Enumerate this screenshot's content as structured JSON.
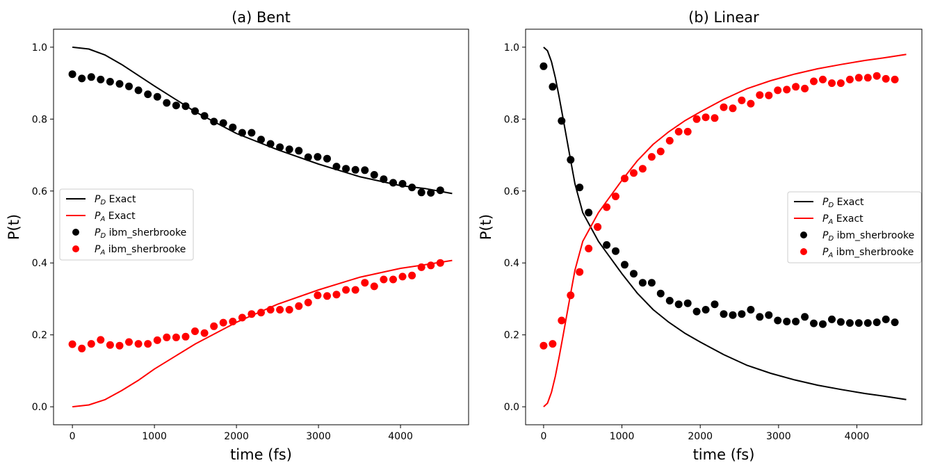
{
  "colors": {
    "P_D": "#000000",
    "P_A": "#ff0000"
  },
  "chart_data": [
    {
      "type": "line+scatter",
      "title": "(a) Bent",
      "xlabel": "time (fs)",
      "ylabel": "P(t)",
      "xlim": [
        -230,
        4830
      ],
      "ylim": [
        -0.05,
        1.05
      ],
      "xticks": [
        0,
        1000,
        2000,
        3000,
        4000
      ],
      "yticks": [
        0.0,
        0.2,
        0.4,
        0.6,
        0.8,
        1.0
      ],
      "xtick_labels": [
        "0",
        "1000",
        "2000",
        "3000",
        "4000"
      ],
      "ytick_labels": [
        "0.0",
        "0.2",
        "0.4",
        "0.6",
        "0.8",
        "1.0"
      ],
      "grid": false,
      "legend": {
        "position": "center-left",
        "entries": [
          {
            "label_main": "P",
            "label_sub": "D",
            "label_rest": " Exact",
            "marker": "line",
            "series": "P_D"
          },
          {
            "label_main": "P",
            "label_sub": "A",
            "label_rest": " Exact",
            "marker": "line",
            "series": "P_A"
          },
          {
            "label_main": "P",
            "label_sub": "D",
            "label_rest": " ibm_sherbrooke",
            "marker": "dot",
            "series": "P_D"
          },
          {
            "label_main": "P",
            "label_sub": "A",
            "label_rest": " ibm_sherbrooke",
            "marker": "dot",
            "series": "P_A"
          }
        ]
      },
      "lines": [
        {
          "name": "P_D Exact",
          "color": "#000000",
          "x": [
            0,
            200,
            400,
            600,
            800,
            1000,
            1500,
            2000,
            2500,
            3000,
            3500,
            4000,
            4300,
            4630
          ],
          "y": [
            1.0,
            0.995,
            0.978,
            0.952,
            0.922,
            0.892,
            0.82,
            0.76,
            0.715,
            0.675,
            0.64,
            0.615,
            0.607,
            0.593
          ]
        },
        {
          "name": "P_A Exact",
          "color": "#ff0000",
          "x": [
            0,
            200,
            400,
            600,
            800,
            1000,
            1500,
            2000,
            2500,
            3000,
            3500,
            4000,
            4300,
            4630
          ],
          "y": [
            0.0,
            0.005,
            0.02,
            0.045,
            0.073,
            0.105,
            0.175,
            0.235,
            0.285,
            0.325,
            0.36,
            0.385,
            0.395,
            0.407
          ]
        }
      ],
      "scatter": [
        {
          "name": "P_D ibm_sherbrooke",
          "color": "#000000",
          "x": [
            0,
            115,
            230,
            345,
            460,
            575,
            690,
            805,
            920,
            1035,
            1150,
            1265,
            1380,
            1495,
            1610,
            1725,
            1840,
            1955,
            2070,
            2185,
            2300,
            2415,
            2530,
            2645,
            2760,
            2875,
            2990,
            3105,
            3220,
            3335,
            3450,
            3565,
            3680,
            3795,
            3910,
            4025,
            4140,
            4255,
            4370,
            4485
          ],
          "y": [
            0.925,
            0.913,
            0.917,
            0.91,
            0.904,
            0.898,
            0.891,
            0.88,
            0.869,
            0.862,
            0.845,
            0.838,
            0.836,
            0.822,
            0.809,
            0.793,
            0.789,
            0.777,
            0.762,
            0.762,
            0.743,
            0.731,
            0.722,
            0.716,
            0.712,
            0.694,
            0.695,
            0.69,
            0.668,
            0.662,
            0.659,
            0.658,
            0.645,
            0.633,
            0.623,
            0.62,
            0.61,
            0.596,
            0.595,
            0.602
          ]
        },
        {
          "name": "P_A ibm_sherbrooke",
          "color": "#ff0000",
          "x": [
            0,
            115,
            230,
            345,
            460,
            575,
            690,
            805,
            920,
            1035,
            1150,
            1265,
            1380,
            1495,
            1610,
            1725,
            1840,
            1955,
            2070,
            2185,
            2300,
            2415,
            2530,
            2645,
            2760,
            2875,
            2990,
            3105,
            3220,
            3335,
            3450,
            3565,
            3680,
            3795,
            3910,
            4025,
            4140,
            4255,
            4370,
            4485
          ],
          "y": [
            0.174,
            0.162,
            0.175,
            0.186,
            0.172,
            0.17,
            0.18,
            0.175,
            0.175,
            0.185,
            0.193,
            0.193,
            0.195,
            0.21,
            0.205,
            0.224,
            0.234,
            0.237,
            0.248,
            0.258,
            0.262,
            0.27,
            0.27,
            0.27,
            0.28,
            0.29,
            0.31,
            0.308,
            0.312,
            0.325,
            0.325,
            0.345,
            0.335,
            0.354,
            0.354,
            0.362,
            0.365,
            0.388,
            0.393,
            0.4
          ]
        }
      ]
    },
    {
      "type": "line+scatter",
      "title": "(b) Linear",
      "xlabel": "time (fs)",
      "ylabel": "P(t)",
      "xlim": [
        -230,
        4830
      ],
      "ylim": [
        -0.05,
        1.05
      ],
      "xticks": [
        0,
        1000,
        2000,
        3000,
        4000
      ],
      "yticks": [
        0.0,
        0.2,
        0.4,
        0.6,
        0.8,
        1.0
      ],
      "xtick_labels": [
        "0",
        "1000",
        "2000",
        "3000",
        "4000"
      ],
      "ytick_labels": [
        "0.0",
        "0.2",
        "0.4",
        "0.6",
        "0.8",
        "1.0"
      ],
      "grid": false,
      "legend": {
        "position": "center-right",
        "entries": [
          {
            "label_main": "P",
            "label_sub": "D",
            "label_rest": " Exact",
            "marker": "line",
            "series": "P_D"
          },
          {
            "label_main": "P",
            "label_sub": "A",
            "label_rest": " Exact",
            "marker": "line",
            "series": "P_A"
          },
          {
            "label_main": "P",
            "label_sub": "D",
            "label_rest": " ibm_sherbrooke",
            "marker": "dot",
            "series": "P_D"
          },
          {
            "label_main": "P",
            "label_sub": "A",
            "label_rest": " ibm_sherbrooke",
            "marker": "dot",
            "series": "P_A"
          }
        ]
      },
      "lines": [
        {
          "name": "P_D Exact",
          "color": "#000000",
          "x": [
            0,
            50,
            100,
            150,
            200,
            250,
            300,
            350,
            400,
            450,
            500,
            600,
            700,
            800,
            900,
            1000,
            1200,
            1400,
            1600,
            1800,
            2000,
            2300,
            2600,
            2900,
            3200,
            3500,
            3800,
            4100,
            4400,
            4630
          ],
          "y": [
            1.0,
            0.99,
            0.96,
            0.915,
            0.86,
            0.8,
            0.74,
            0.68,
            0.62,
            0.58,
            0.54,
            0.5,
            0.46,
            0.43,
            0.4,
            0.37,
            0.315,
            0.27,
            0.235,
            0.205,
            0.18,
            0.145,
            0.115,
            0.093,
            0.075,
            0.06,
            0.048,
            0.037,
            0.028,
            0.02
          ]
        },
        {
          "name": "P_A Exact",
          "color": "#ff0000",
          "x": [
            0,
            50,
            100,
            150,
            200,
            250,
            300,
            350,
            400,
            450,
            500,
            600,
            700,
            800,
            900,
            1000,
            1200,
            1400,
            1600,
            1800,
            2000,
            2300,
            2600,
            2900,
            3200,
            3500,
            3800,
            4100,
            4400,
            4630
          ],
          "y": [
            0.0,
            0.01,
            0.04,
            0.085,
            0.14,
            0.2,
            0.26,
            0.32,
            0.38,
            0.42,
            0.46,
            0.5,
            0.54,
            0.57,
            0.6,
            0.63,
            0.685,
            0.73,
            0.765,
            0.795,
            0.82,
            0.855,
            0.885,
            0.907,
            0.925,
            0.94,
            0.952,
            0.963,
            0.972,
            0.98
          ]
        }
      ],
      "scatter": [
        {
          "name": "P_D ibm_sherbrooke",
          "color": "#000000",
          "x": [
            0,
            115,
            230,
            345,
            460,
            575,
            690,
            805,
            920,
            1035,
            1150,
            1265,
            1380,
            1495,
            1610,
            1725,
            1840,
            1955,
            2070,
            2185,
            2300,
            2415,
            2530,
            2645,
            2760,
            2875,
            2990,
            3105,
            3220,
            3335,
            3450,
            3565,
            3680,
            3795,
            3910,
            4025,
            4140,
            4255,
            4370,
            4485
          ],
          "y": [
            0.947,
            0.89,
            0.795,
            0.687,
            0.61,
            0.54,
            0.5,
            0.45,
            0.433,
            0.395,
            0.37,
            0.345,
            0.345,
            0.315,
            0.295,
            0.285,
            0.288,
            0.265,
            0.27,
            0.285,
            0.258,
            0.255,
            0.258,
            0.27,
            0.25,
            0.255,
            0.24,
            0.237,
            0.237,
            0.25,
            0.232,
            0.23,
            0.243,
            0.236,
            0.233,
            0.233,
            0.233,
            0.235,
            0.243,
            0.235
          ]
        },
        {
          "name": "P_A ibm_sherbrooke",
          "color": "#ff0000",
          "x": [
            0,
            115,
            230,
            345,
            460,
            575,
            690,
            805,
            920,
            1035,
            1150,
            1265,
            1380,
            1495,
            1610,
            1725,
            1840,
            1955,
            2070,
            2185,
            2300,
            2415,
            2530,
            2645,
            2760,
            2875,
            2990,
            3105,
            3220,
            3335,
            3450,
            3565,
            3680,
            3795,
            3910,
            4025,
            4140,
            4255,
            4370,
            4485
          ],
          "y": [
            0.17,
            0.175,
            0.24,
            0.31,
            0.375,
            0.44,
            0.5,
            0.555,
            0.585,
            0.635,
            0.65,
            0.662,
            0.695,
            0.71,
            0.74,
            0.765,
            0.765,
            0.8,
            0.805,
            0.803,
            0.833,
            0.83,
            0.852,
            0.843,
            0.867,
            0.866,
            0.88,
            0.882,
            0.89,
            0.885,
            0.905,
            0.91,
            0.9,
            0.9,
            0.91,
            0.915,
            0.915,
            0.92,
            0.912,
            0.91
          ]
        }
      ]
    }
  ]
}
